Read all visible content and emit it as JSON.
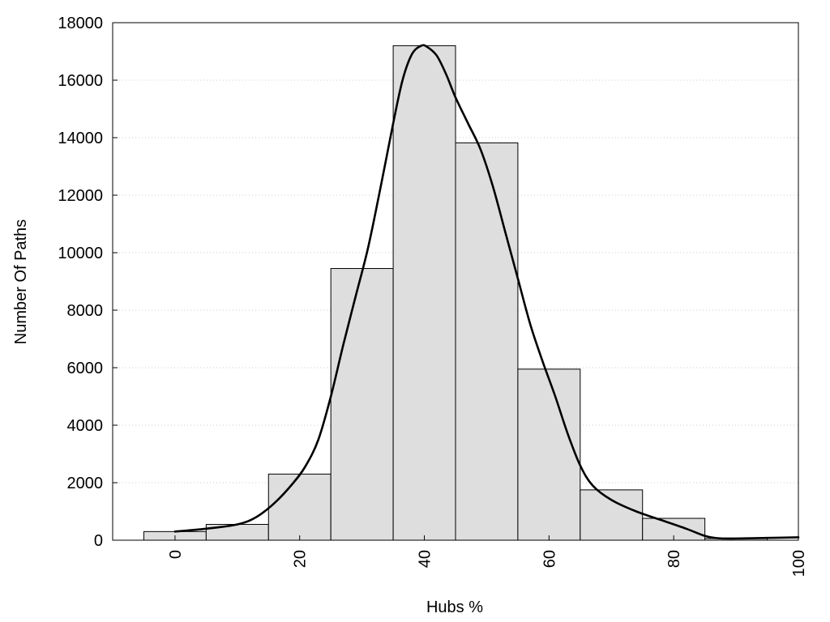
{
  "chart_data": {
    "type": "bar",
    "title": "",
    "xlabel": "Hubs %",
    "ylabel": "Number Of Paths",
    "xlim": [
      -10,
      100
    ],
    "ylim": [
      0,
      18000
    ],
    "grid": "y-dotted",
    "legend": "none",
    "x_ticks": [
      0,
      20,
      40,
      60,
      80,
      100
    ],
    "y_ticks": [
      0,
      2000,
      4000,
      6000,
      8000,
      10000,
      12000,
      14000,
      16000,
      18000
    ],
    "bin_width": 10,
    "bins": [
      {
        "center": 0,
        "value": 300
      },
      {
        "center": 10,
        "value": 550
      },
      {
        "center": 20,
        "value": 2300
      },
      {
        "center": 30,
        "value": 9450
      },
      {
        "center": 40,
        "value": 17200
      },
      {
        "center": 50,
        "value": 13820
      },
      {
        "center": 60,
        "value": 5950
      },
      {
        "center": 70,
        "value": 1750
      },
      {
        "center": 80,
        "value": 760
      },
      {
        "center": 90,
        "value": 60
      }
    ],
    "curve": {
      "x": [
        0,
        5,
        10,
        13,
        16,
        19,
        21,
        23,
        25,
        27,
        29,
        31,
        33,
        35,
        36.5,
        38,
        39.5,
        40.5,
        42,
        43.5,
        45,
        47,
        49,
        51,
        53,
        55,
        57,
        59,
        61,
        63,
        65,
        67,
        70,
        74,
        78,
        82,
        85,
        87,
        90,
        95,
        100
      ],
      "y": [
        300,
        400,
        550,
        800,
        1300,
        2000,
        2600,
        3500,
        5000,
        6800,
        8500,
        10200,
        12300,
        14500,
        16000,
        16900,
        17200,
        17150,
        16850,
        16200,
        15400,
        14500,
        13600,
        12300,
        10700,
        9100,
        7500,
        6200,
        5000,
        3700,
        2600,
        1900,
        1400,
        1000,
        700,
        400,
        150,
        70,
        60,
        80,
        100
      ]
    },
    "colors": {
      "bar_fill": "#dedede",
      "bar_stroke": "#000000",
      "curve": "#000000",
      "grid": "#cccccc"
    }
  }
}
